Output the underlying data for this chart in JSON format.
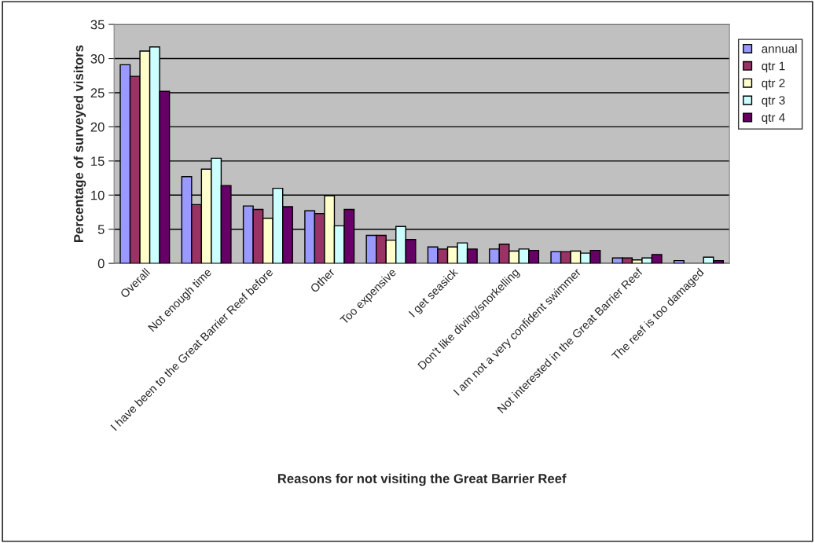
{
  "chart_data": {
    "type": "bar",
    "xlabel": "Reasons for not visiting the Great Barrier Reef",
    "ylabel": "Percentage of surveyed visitors",
    "categories": [
      "Overall",
      "Not enough time",
      "I have been to the Great Barrier Reef before",
      "Other",
      "Too expensive",
      "I get seasick",
      "Don't like diving/snorkelling",
      "I am not a very confident swimmer",
      "Not interested in the Great Barrier Reef",
      "The reef is too damaged"
    ],
    "series": [
      {
        "name": "annual",
        "color": "#9999ff",
        "values": [
          29.1,
          12.7,
          8.4,
          7.7,
          4.1,
          2.4,
          2.1,
          1.7,
          0.8,
          0.4
        ]
      },
      {
        "name": "qtr 1",
        "color": "#993366",
        "values": [
          27.4,
          8.6,
          7.9,
          7.3,
          4.1,
          2.1,
          2.8,
          1.7,
          0.8,
          null
        ]
      },
      {
        "name": "qtr 2",
        "color": "#ffffcc",
        "values": [
          31.1,
          13.8,
          6.6,
          9.9,
          3.4,
          2.4,
          1.8,
          1.8,
          0.5,
          null
        ]
      },
      {
        "name": "qtr 3",
        "color": "#ccffff",
        "values": [
          31.7,
          15.4,
          11.0,
          5.5,
          5.4,
          3.0,
          2.1,
          1.5,
          0.8,
          0.9
        ]
      },
      {
        "name": "qtr 4",
        "color": "#660066",
        "values": [
          25.2,
          11.4,
          8.3,
          7.9,
          3.5,
          2.1,
          1.9,
          1.9,
          1.3,
          0.4
        ]
      }
    ],
    "ylim": [
      0,
      35
    ],
    "yticks": [
      0,
      5,
      10,
      15,
      20,
      25,
      30,
      35
    ],
    "grid": "y",
    "legend": "right"
  }
}
